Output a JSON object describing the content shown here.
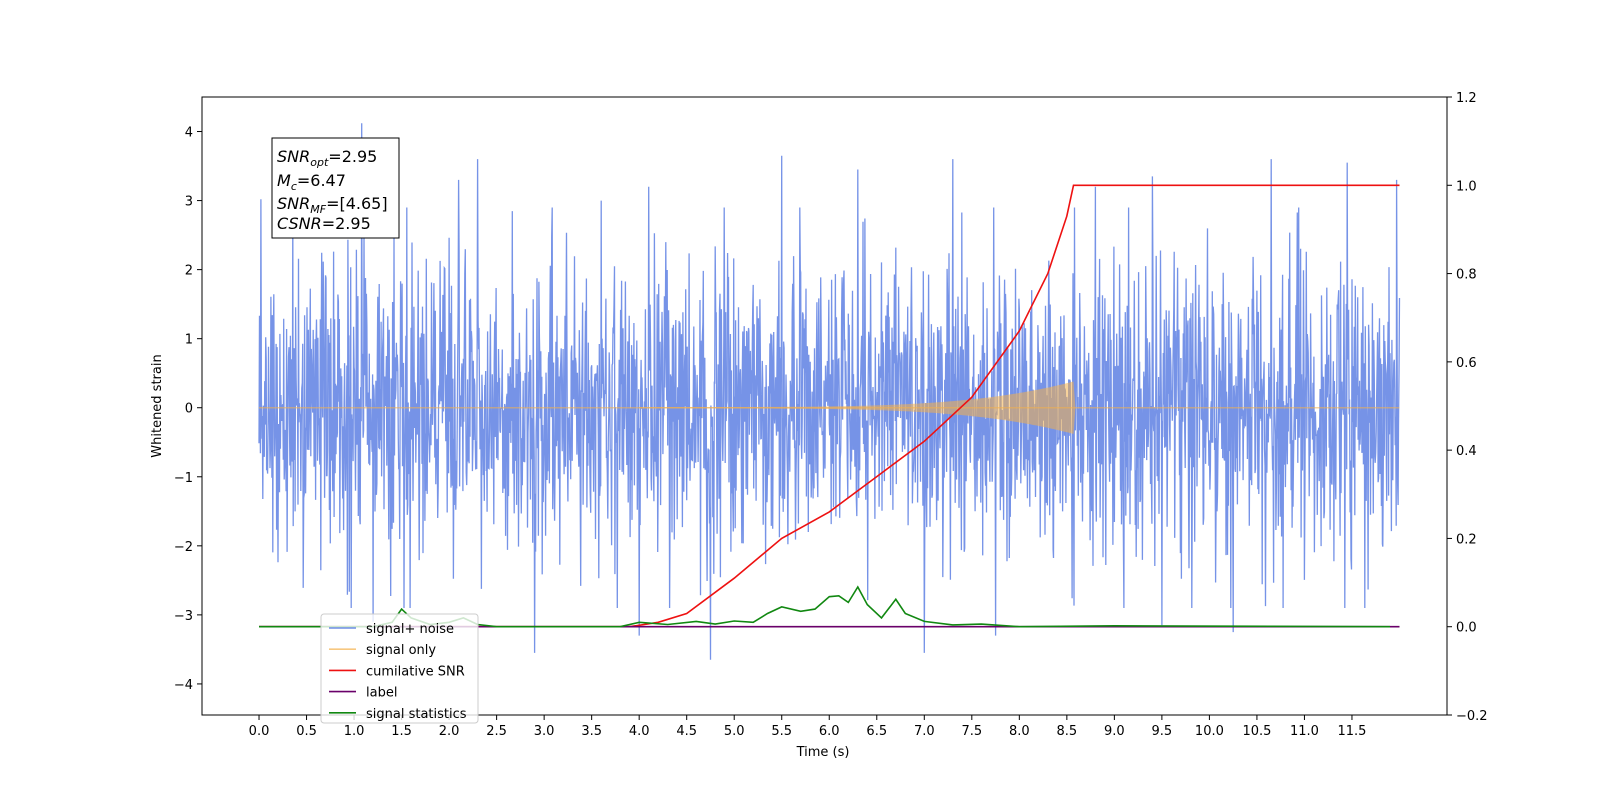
{
  "chart_data": {
    "type": "line",
    "xlabel": "Time (s)",
    "ylabel": "Whitened strain",
    "xlim": [
      -0.6,
      12.5
    ],
    "ylim": [
      -4.45,
      4.5
    ],
    "y2lim": [
      -0.2,
      1.2
    ],
    "x_ticks": [
      "0.0",
      "0.5",
      "1.0",
      "1.5",
      "2.0",
      "2.5",
      "3.0",
      "3.5",
      "4.0",
      "4.5",
      "5.0",
      "5.5",
      "6.0",
      "6.5",
      "7.0",
      "7.5",
      "8.0",
      "8.5",
      "9.0",
      "9.5",
      "10.0",
      "10.5",
      "11.0",
      "11.5"
    ],
    "y_ticks": [
      4,
      3,
      2,
      1,
      0,
      -1,
      -2,
      -3,
      -4
    ],
    "y2_ticks": [
      "1.2",
      "1.0",
      "0.8",
      "0.6",
      "0.4",
      "0.2",
      "0.0",
      "−0.2"
    ],
    "annotation": {
      "lines": [
        {
          "base": "SNR",
          "sub": "opt",
          "value": "=2.95"
        },
        {
          "base": "M",
          "sub": "c",
          "value": "=6.47"
        },
        {
          "base": "SNR",
          "sub": "MF",
          "value": "=[4.65]"
        },
        {
          "base": "CSNR",
          "sub": "",
          "value": "=2.95"
        }
      ]
    },
    "legend_placement": "lower-left",
    "series": [
      {
        "name": "signal+ noise",
        "color": "#6f8de6",
        "axis": "left",
        "x_range": [
          0.0,
          12.0
        ],
        "std": 1.05,
        "spikes": [
          [
            0.02,
            3.02
          ],
          [
            1.08,
            4.12
          ],
          [
            1.2,
            -3.1
          ],
          [
            2.1,
            3.3
          ],
          [
            2.3,
            3.6
          ],
          [
            2.9,
            -3.55
          ],
          [
            3.6,
            3.0
          ],
          [
            4.0,
            -3.3
          ],
          [
            4.1,
            3.2
          ],
          [
            4.75,
            -3.65
          ],
          [
            5.5,
            3.65
          ],
          [
            6.3,
            3.45
          ],
          [
            7.0,
            -3.55
          ],
          [
            7.3,
            3.6
          ],
          [
            7.75,
            -3.3
          ],
          [
            8.8,
            3.2
          ],
          [
            9.4,
            3.35
          ],
          [
            9.5,
            -3.15
          ],
          [
            10.25,
            -3.25
          ],
          [
            10.65,
            3.6
          ],
          [
            11.45,
            3.55
          ],
          [
            11.97,
            3.3
          ]
        ]
      },
      {
        "name": "signal only",
        "color": "#f4b04a",
        "axis": "left",
        "chirp_start": 4.0,
        "chirp_end": 8.57,
        "peak_amplitude": 0.38
      },
      {
        "name": "cumilative SNR",
        "color": "#ee1111",
        "axis": "right",
        "points": [
          [
            0,
            0
          ],
          [
            3.9,
            0
          ],
          [
            4.2,
            0.01
          ],
          [
            4.5,
            0.03
          ],
          [
            5.0,
            0.11
          ],
          [
            5.5,
            0.2
          ],
          [
            6.0,
            0.26
          ],
          [
            6.5,
            0.34
          ],
          [
            7.0,
            0.42
          ],
          [
            7.5,
            0.52
          ],
          [
            8.0,
            0.67
          ],
          [
            8.3,
            0.8
          ],
          [
            8.5,
            0.93
          ],
          [
            8.57,
            1.0
          ],
          [
            12.0,
            1.0
          ]
        ]
      },
      {
        "name": "label",
        "color": "#6a006a",
        "axis": "right",
        "points": [
          [
            0,
            0
          ],
          [
            12.0,
            0
          ]
        ]
      },
      {
        "name": "signal statistics",
        "color": "#118811",
        "axis": "right",
        "points": [
          [
            0,
            0
          ],
          [
            1.2,
            0
          ],
          [
            1.4,
            0.01
          ],
          [
            1.5,
            0.04
          ],
          [
            1.6,
            0.02
          ],
          [
            1.8,
            0.005
          ],
          [
            2.0,
            0.01
          ],
          [
            2.15,
            0.02
          ],
          [
            2.3,
            0.005
          ],
          [
            2.5,
            0
          ],
          [
            3.8,
            0
          ],
          [
            4.0,
            0.01
          ],
          [
            4.3,
            0.005
          ],
          [
            4.6,
            0.012
          ],
          [
            4.8,
            0.006
          ],
          [
            5.0,
            0.013
          ],
          [
            5.2,
            0.01
          ],
          [
            5.35,
            0.03
          ],
          [
            5.5,
            0.045
          ],
          [
            5.7,
            0.035
          ],
          [
            5.85,
            0.04
          ],
          [
            6.0,
            0.068
          ],
          [
            6.1,
            0.07
          ],
          [
            6.2,
            0.055
          ],
          [
            6.3,
            0.09
          ],
          [
            6.4,
            0.05
          ],
          [
            6.55,
            0.02
          ],
          [
            6.7,
            0.062
          ],
          [
            6.8,
            0.03
          ],
          [
            7.0,
            0.012
          ],
          [
            7.3,
            0.004
          ],
          [
            7.6,
            0.006
          ],
          [
            8.0,
            0
          ],
          [
            9.0,
            0.002
          ],
          [
            11.9,
            0
          ]
        ]
      }
    ]
  }
}
